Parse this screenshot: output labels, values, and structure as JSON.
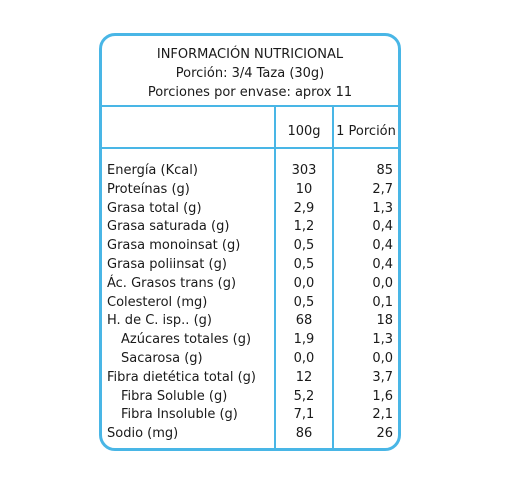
{
  "header": {
    "title": "INFORMACIÓN NUTRICIONAL",
    "serving": "Porción: 3/4 Taza (30g)",
    "servings_per_container": "Porciones por envase: aprox 11"
  },
  "columns": {
    "per100": "100g",
    "perServing": "1 Porción"
  },
  "rows": [
    {
      "label": "Energía (Kcal)",
      "v100": "303",
      "vserv": "85"
    },
    {
      "label": "Proteínas (g)",
      "v100": "10",
      "vserv": "2,7"
    },
    {
      "label": "Grasa total (g)",
      "v100": "2,9",
      "vserv": "1,3"
    },
    {
      "label": "Grasa saturada (g)",
      "v100": "1,2",
      "vserv": "0,4"
    },
    {
      "label": "Grasa monoinsat (g)",
      "v100": "0,5",
      "vserv": "0,4"
    },
    {
      "label": "Grasa poliinsat (g)",
      "v100": "0,5",
      "vserv": "0,4"
    },
    {
      "label": "Ác. Grasos trans (g)",
      "v100": "0,0",
      "vserv": "0,0"
    },
    {
      "label": "Colesterol (mg)",
      "v100": "0,5",
      "vserv": "0,1"
    },
    {
      "label": "H. de C. isp.. (g)",
      "v100": "68",
      "vserv": "18"
    },
    {
      "label": "Azúcares totales (g)",
      "v100": "1,9",
      "vserv": "1,3"
    },
    {
      "label": "Sacarosa (g)",
      "v100": "0,0",
      "vserv": "0,0"
    },
    {
      "label": "Fibra dietética total (g)",
      "v100": "12",
      "vserv": "3,7"
    },
    {
      "label": "Fibra Soluble (g)",
      "v100": "5,2",
      "vserv": "1,6"
    },
    {
      "label": "Fibra Insoluble (g)",
      "v100": "7,1",
      "vserv": "2,1"
    },
    {
      "label": "Sodio (mg)",
      "v100": "86",
      "vserv": "26"
    }
  ],
  "colors": {
    "border": "#49b6e6",
    "text": "#1a1a1a"
  }
}
